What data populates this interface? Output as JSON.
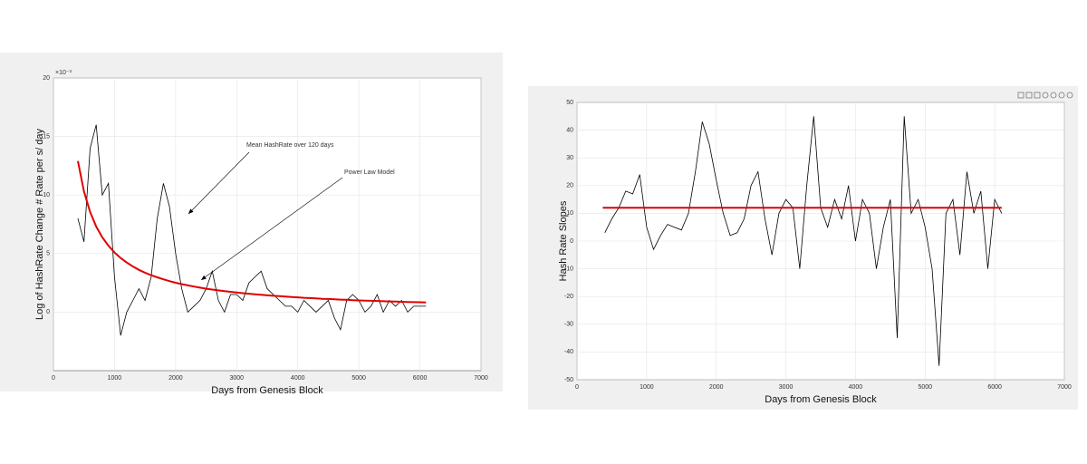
{
  "chart_data": [
    {
      "type": "line",
      "x_label": "Days from Genesis Block",
      "y_label": "Log of HashRate Change # Rate per s/ day",
      "y_multiplier": "×10⁻³",
      "xlim": [
        0,
        7000
      ],
      "xticks": [
        0,
        1000,
        2000,
        3000,
        4000,
        5000,
        6000,
        7000
      ],
      "ylim": [
        -5,
        20
      ],
      "yticks": [
        0,
        5,
        10,
        15,
        20
      ],
      "grid": true,
      "series": [
        {
          "color": "#000000",
          "x": [
            400,
            500,
            600,
            700,
            800,
            900,
            1000,
            1100,
            1200,
            1300,
            1400,
            1500,
            1600,
            1700,
            1800,
            1900,
            2000,
            2100,
            2200,
            2300,
            2400,
            2500,
            2600,
            2700,
            2800,
            2900,
            3000,
            3100,
            3200,
            3300,
            3400,
            3500,
            3600,
            3700,
            3800,
            3900,
            4000,
            4100,
            4200,
            4300,
            4400,
            4500,
            4600,
            4700,
            4800,
            4900,
            5000,
            5100,
            5200,
            5300,
            5400,
            5500,
            5600,
            5700,
            5800,
            5900,
            6000,
            6100
          ],
          "values": [
            8,
            6,
            14,
            16,
            10,
            11,
            3,
            -2,
            0,
            1,
            2,
            1,
            3,
            8,
            11,
            9,
            5,
            2,
            0,
            0.5,
            1,
            2,
            3.5,
            1,
            0,
            1.5,
            1.5,
            1,
            2.5,
            3,
            3.5,
            2,
            1.5,
            1,
            0.5,
            0.5,
            0,
            1,
            0.5,
            0,
            0.5,
            1,
            -0.5,
            -1.5,
            1,
            1.5,
            1,
            0,
            0.5,
            1.5,
            0,
            1,
            0.5,
            1,
            0,
            0.5,
            0.5,
            0.5
          ]
        },
        {
          "color": "#e00000",
          "x": [
            400,
            500,
            600,
            700,
            800,
            900,
            1000,
            1100,
            1200,
            1300,
            1400,
            1500,
            1600,
            1700,
            1800,
            1900,
            2000,
            2100,
            2200,
            2300,
            2400,
            2500,
            2600,
            2700,
            2800,
            2900,
            3000,
            3100,
            3200,
            3300,
            3400,
            3500,
            3600,
            3700,
            3800,
            3900,
            4000,
            4100,
            4200,
            4300,
            4400,
            4500,
            4600,
            4700,
            4800,
            4900,
            5000,
            5100,
            5200,
            5300,
            5400,
            5500,
            5600,
            5700,
            5800,
            5900,
            6000,
            6100
          ],
          "values": [
            12.9,
            10.3,
            8.55,
            7.31,
            6.39,
            5.67,
            5.09,
            4.62,
            4.23,
            3.9,
            3.61,
            3.37,
            3.15,
            2.97,
            2.8,
            2.65,
            2.51,
            2.39,
            2.28,
            2.18,
            2.09,
            2.0,
            1.93,
            1.86,
            1.79,
            1.73,
            1.67,
            1.62,
            1.57,
            1.52,
            1.48,
            1.43,
            1.39,
            1.36,
            1.32,
            1.29,
            1.26,
            1.22,
            1.2,
            1.17,
            1.14,
            1.12,
            1.09,
            1.07,
            1.05,
            1.02,
            1.0,
            0.98,
            0.97,
            0.95,
            0.93,
            0.91,
            0.9,
            0.88,
            0.87,
            0.85,
            0.84,
            0.82
          ]
        }
      ],
      "annotations": [
        {
          "text": "Mean HashRate over 120 days"
        },
        {
          "text": "Power Law Model"
        }
      ]
    },
    {
      "type": "line",
      "x_label": "Days from Genesis Block",
      "y_label": "Hash Rate Slopes",
      "xlim": [
        0,
        7000
      ],
      "xticks": [
        0,
        1000,
        2000,
        3000,
        4000,
        5000,
        6000,
        7000
      ],
      "ylim": [
        -50,
        50
      ],
      "yticks": [
        -50,
        -40,
        -30,
        -20,
        -10,
        0,
        10,
        20,
        30,
        40,
        50
      ],
      "grid": true,
      "series": [
        {
          "color": "#000000",
          "x": [
            400,
            500,
            600,
            700,
            800,
            900,
            1000,
            1100,
            1200,
            1300,
            1400,
            1500,
            1600,
            1700,
            1800,
            1900,
            2000,
            2100,
            2200,
            2300,
            2400,
            2500,
            2600,
            2700,
            2800,
            2900,
            3000,
            3100,
            3200,
            3300,
            3400,
            3500,
            3600,
            3700,
            3800,
            3900,
            4000,
            4100,
            4200,
            4300,
            4400,
            4500,
            4600,
            4700,
            4800,
            4900,
            5000,
            5100,
            5200,
            5300,
            5400,
            5500,
            5600,
            5700,
            5800,
            5900,
            6000,
            6100
          ],
          "values": [
            3,
            8,
            12,
            18,
            17,
            24,
            5,
            -3,
            2,
            6,
            5,
            4,
            10,
            25,
            43,
            35,
            22,
            10,
            2,
            3,
            8,
            20,
            25,
            8,
            -5,
            10,
            15,
            12,
            -10,
            20,
            45,
            12,
            5,
            15,
            8,
            20,
            0,
            15,
            10,
            -10,
            5,
            15,
            -35,
            45,
            10,
            15,
            5,
            -10,
            -45,
            10,
            15,
            -5,
            25,
            10,
            18,
            -10,
            15,
            10
          ]
        },
        {
          "color": "#e00000",
          "x": [
            370,
            6100
          ],
          "values": [
            12,
            12
          ]
        }
      ]
    }
  ]
}
